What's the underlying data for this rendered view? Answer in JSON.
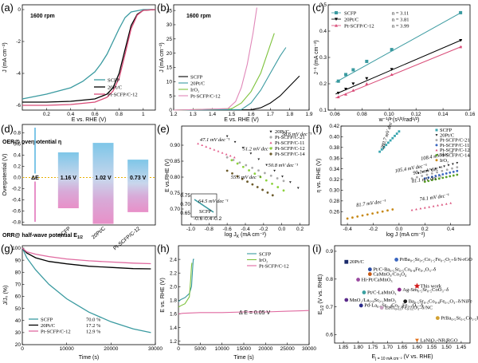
{
  "chart_data": [
    {
      "id": "a",
      "type": "line",
      "panel_label": "(a)",
      "annotation": "1600 rpm",
      "xlabel": "E vs. RHE (V)",
      "ylabel": "J (mA cm⁻²)",
      "xlim": [
        0.0,
        1.1
      ],
      "ylim": [
        -6.3,
        0.3
      ],
      "xticks": [
        0.2,
        0.4,
        0.6,
        0.8,
        1.0
      ],
      "yticks": [
        -6,
        -4,
        -2,
        0
      ],
      "legend": "center-right",
      "series": [
        {
          "name": "SCFP",
          "color": "#3a9aa0",
          "x": [
            0.0,
            0.2,
            0.4,
            0.5,
            0.6,
            0.65,
            0.7,
            0.75,
            0.8,
            0.85,
            0.9,
            1.0,
            1.1
          ],
          "y": [
            -5.6,
            -5.3,
            -4.9,
            -4.5,
            -3.9,
            -3.4,
            -2.8,
            -2.0,
            -1.2,
            -0.5,
            -0.15,
            0.0,
            0.0
          ]
        },
        {
          "name": "20Pt/C",
          "color": "#000000",
          "x": [
            0.0,
            0.2,
            0.4,
            0.6,
            0.7,
            0.75,
            0.8,
            0.85,
            0.9,
            0.95,
            1.0,
            1.1
          ],
          "y": [
            -5.8,
            -5.8,
            -5.75,
            -5.6,
            -5.3,
            -4.9,
            -4.0,
            -2.5,
            -1.0,
            -0.3,
            -0.05,
            0.0
          ]
        },
        {
          "name": "Pt-SCFP/C-12",
          "color": "#d94c78",
          "x": [
            0.0,
            0.2,
            0.4,
            0.6,
            0.7,
            0.75,
            0.8,
            0.85,
            0.9,
            0.95,
            1.0,
            1.1
          ],
          "y": [
            -6.0,
            -6.0,
            -5.95,
            -5.8,
            -5.5,
            -5.1,
            -4.3,
            -2.8,
            -1.2,
            -0.35,
            -0.05,
            0.0
          ]
        }
      ]
    },
    {
      "id": "b",
      "type": "line",
      "panel_label": "(b)",
      "annotation": "1600 rpm",
      "xlabel": "E vs. RHE (V)",
      "ylabel": "J (mA cm⁻²)",
      "xlim": [
        1.2,
        1.9
      ],
      "ylim": [
        0,
        37
      ],
      "xticks": [
        1.2,
        1.3,
        1.4,
        1.5,
        1.6,
        1.7,
        1.8,
        1.9
      ],
      "yticks": [
        0,
        5,
        10,
        15,
        20,
        25,
        30,
        35
      ],
      "legend": "bottom-left",
      "series": [
        {
          "name": "SCFP",
          "color": "#000000",
          "x": [
            1.2,
            1.6,
            1.65,
            1.7,
            1.75,
            1.8,
            1.85
          ],
          "y": [
            0,
            0.1,
            0.8,
            2.5,
            5.0,
            8.5,
            12.0
          ]
        },
        {
          "name": "20Pt/C",
          "color": "#3a9aa0",
          "x": [
            1.2,
            1.55,
            1.6,
            1.65,
            1.7,
            1.75,
            1.78
          ],
          "y": [
            0,
            0.2,
            2.5,
            7.0,
            13.0,
            19.0,
            22.0
          ]
        },
        {
          "name": "IrO₂",
          "color": "#7ec23c",
          "x": [
            1.2,
            1.5,
            1.55,
            1.6,
            1.65,
            1.7,
            1.72
          ],
          "y": [
            0,
            0.5,
            2.5,
            6.5,
            13.0,
            23.0,
            27.0
          ]
        },
        {
          "name": "Pt-SCFP/C-12",
          "color": "#e087b8",
          "x": [
            1.2,
            1.48,
            1.52,
            1.55,
            1.58,
            1.61,
            1.63
          ],
          "y": [
            0,
            0.5,
            3.0,
            8.0,
            16.0,
            27.0,
            36.0
          ]
        }
      ]
    },
    {
      "id": "c",
      "type": "scatter",
      "panel_label": "(c)",
      "xlabel": "w⁻¹/² (s¹/²/rad¹/²)",
      "ylabel": "J⁻¹ (mA cm⁻²)",
      "xlim": [
        0.055,
        0.16
      ],
      "ylim": [
        0.1,
        0.5
      ],
      "xticks": [
        0.06,
        0.08,
        0.1,
        0.12,
        0.14,
        0.16
      ],
      "yticks": [
        0.1,
        0.2,
        0.3,
        0.4,
        0.5
      ],
      "legend": "top",
      "series": [
        {
          "name": "SCFP",
          "n": "n = 3.11",
          "marker": "square",
          "color": "#3a9aa0",
          "x": [
            0.0625,
            0.068,
            0.0735,
            0.0835,
            0.102,
            0.153
          ],
          "y": [
            0.21,
            0.235,
            0.253,
            0.285,
            0.33,
            0.47
          ]
        },
        {
          "name": "20Pt/C",
          "n": "n = 3.81",
          "marker": "triangle-down",
          "color": "#000000",
          "x": [
            0.0625,
            0.068,
            0.0735,
            0.0835,
            0.102,
            0.153
          ],
          "y": [
            0.165,
            0.18,
            0.2,
            0.22,
            0.255,
            0.365
          ]
        },
        {
          "name": "Pt-SCFP/C-12",
          "n": "n = 3.99",
          "marker": "triangle-up",
          "color": "#d94c78",
          "x": [
            0.0625,
            0.068,
            0.0735,
            0.0835,
            0.102,
            0.153
          ],
          "y": [
            0.15,
            0.16,
            0.175,
            0.2,
            0.235,
            0.34
          ]
        }
      ]
    },
    {
      "id": "d",
      "type": "bar",
      "panel_label": "(d)",
      "ylabel": "Overpotential (V)",
      "top_label": "OER@ overpotential η",
      "bottom_label": "ORR@ half-wave potential E",
      "bottom_label_sub": "1/2",
      "ylim": [
        -0.85,
        0.95
      ],
      "yticks": [
        0.8,
        0.6,
        0.4,
        0.2,
        0.0,
        -0.2,
        -0.4,
        -0.6,
        -0.8
      ],
      "categories": [
        "SCFP",
        "20Pt/C",
        "Pt-SCFP/C-12"
      ],
      "oer": [
        0.45,
        0.62,
        0.32
      ],
      "orr": [
        -0.55,
        -0.83,
        -0.62
      ],
      "delta_label": "ΔE",
      "delta_values": [
        "1.16 V",
        "1.02 V",
        "0.73 V"
      ],
      "delta_value_colors": [
        "#1b4f8f",
        "#1b4f8f",
        "#1b4f8f"
      ]
    },
    {
      "id": "e",
      "type": "scatter",
      "panel_label": "(e)",
      "xlabel": "log J (mA cm⁻²)",
      "xlabel_sub": "K",
      "ylabel": "E vs.RHE (V)",
      "xlim": [
        -1.1,
        0.3
      ],
      "ylim": [
        0.65,
        0.96
      ],
      "xticks": [
        -1.0,
        -0.8,
        -0.6,
        -0.4,
        -0.2,
        0.0,
        0.2
      ],
      "yticks": [
        0.7,
        0.75,
        0.8,
        0.85,
        0.9
      ],
      "legend": "top-right",
      "series": [
        {
          "name": "20Pt/C",
          "color": "#222222",
          "marker": "triangle-down",
          "slope": "58.6 mV dec⁻¹",
          "x": [
            -0.6,
            0.18
          ],
          "y": [
            0.928,
            0.766
          ]
        },
        {
          "name": "Pt-SCFP/C-21",
          "color": "#aaaaaa",
          "marker": "circle",
          "slope": "51.2 mV dec⁻¹",
          "x": [
            -0.6,
            0.02
          ],
          "y": [
            0.862,
            0.788
          ]
        },
        {
          "name": "Pt-SCFP/C-11",
          "color": "#e35a8a",
          "marker": "triangle-up",
          "slope": "47.1 mV dec⁻¹",
          "x": [
            -0.92,
            -0.52
          ],
          "y": [
            0.905,
            0.862
          ]
        },
        {
          "name": "Pt-SCFP/C-12",
          "color": "#8cd23c",
          "marker": "circle",
          "slope": "50.8 mV dec⁻¹",
          "x": [
            -0.55,
            0.02
          ],
          "y": [
            0.853,
            0.758
          ]
        },
        {
          "name": "Pt-SCFP/C-14",
          "color": "#6b5a2a",
          "marker": "circle",
          "slope": "55.6 mV dec⁻¹",
          "x": [
            -0.6,
            -0.1
          ],
          "y": [
            0.82,
            0.743
          ]
        }
      ],
      "inset": {
        "label": "SCFP",
        "slope": "64.5 mV dec⁻¹",
        "xticks": [
          -0.6,
          -0.4,
          -0.2
        ],
        "yticks": [
          0.75,
          0.7,
          0.65
        ]
      }
    },
    {
      "id": "f",
      "type": "scatter",
      "panel_label": "(f)",
      "xlabel": "log J (mA cm⁻²)",
      "ylabel": "η vs. RHE (V)",
      "xlim": [
        -0.45,
        0.55
      ],
      "ylim": [
        0.235,
        0.42
      ],
      "xticks": [
        -0.4,
        -0.2,
        0.0,
        0.2,
        0.4
      ],
      "yticks": [
        0.26,
        0.28,
        0.3,
        0.32,
        0.34,
        0.36,
        0.38,
        0.4,
        0.42
      ],
      "legend": "top-right",
      "series": [
        {
          "name": "SCFP",
          "color": "#3aa6b0",
          "marker": "square",
          "slope": "280.7 mV dec⁻¹",
          "x": [
            -0.15,
            0.0
          ],
          "y": [
            0.372,
            0.41
          ]
        },
        {
          "name": "20Pt/C",
          "color": "#222222",
          "marker": "triangle-down",
          "slope": "108.4 mV dec⁻¹",
          "x": [
            0.15,
            0.45
          ],
          "y": [
            0.332,
            0.351
          ]
        },
        {
          "name": "Pt-SCFP/C-21",
          "color": "#aaaaaa",
          "marker": "circle",
          "slope": "105.4 mV dec⁻¹",
          "x": [
            0.1,
            0.45
          ],
          "y": [
            0.322,
            0.343
          ]
        },
        {
          "name": "Pt-SCFP/C-11",
          "color": "#3a66c0",
          "marker": "circle",
          "slope": "90.1 mV dec⁻¹",
          "x": [
            0.2,
            0.45
          ],
          "y": [
            0.322,
            0.336
          ]
        },
        {
          "name": "Pt-SCFP/C-12",
          "color": "#d94c78",
          "marker": "triangle-up",
          "slope": "74.1 mV dec⁻¹",
          "x": [
            0.1,
            0.4
          ],
          "y": [
            0.263,
            0.276
          ]
        },
        {
          "name": "Pt-SCFP/C-14",
          "color": "#5aa028",
          "marker": "circle",
          "slope": "81.1 mV dec⁻¹",
          "x": [
            0.2,
            0.45
          ],
          "y": [
            0.316,
            0.329
          ]
        },
        {
          "name": "IrO₂",
          "color": "#c88a1a",
          "marker": "circle",
          "slope": "81.7 mV dec⁻¹",
          "x": [
            -0.4,
            -0.05
          ],
          "y": [
            0.247,
            0.264
          ]
        }
      ]
    },
    {
      "id": "g",
      "type": "line",
      "panel_label": "(g)",
      "xlabel": "Time (s)",
      "ylabel": "J/J₀ (%)",
      "xlim": [
        0,
        30000
      ],
      "ylim": [
        20,
        102
      ],
      "xticks": [
        0,
        10000,
        20000,
        30000
      ],
      "yticks": [
        20,
        30,
        40,
        50,
        60,
        70,
        80,
        90,
        100
      ],
      "legend": "bottom-left",
      "series": [
        {
          "name": "SCFP",
          "retention": "70.0 %",
          "color": "#3a9aa0",
          "x": [
            0,
            1000,
            3000,
            6000,
            10000,
            15000,
            20000,
            25000,
            29000
          ],
          "y": [
            100,
            92,
            82,
            70,
            58,
            47,
            39,
            33,
            30
          ]
        },
        {
          "name": "20Pt/C",
          "retention": "17.2 %",
          "color": "#000000",
          "x": [
            0,
            1000,
            3000,
            6000,
            10000,
            15000,
            20000,
            25000,
            29000
          ],
          "y": [
            100,
            96,
            92,
            89,
            87,
            85,
            84,
            83,
            82.8
          ]
        },
        {
          "name": "Pt-SCFP/C-12",
          "retention": "12.9 %",
          "color": "#e06aa0",
          "x": [
            0,
            1000,
            3000,
            6000,
            10000,
            15000,
            20000,
            25000,
            29000
          ],
          "y": [
            100,
            97,
            95,
            93,
            91,
            89.5,
            88.5,
            87.6,
            87.1
          ]
        }
      ]
    },
    {
      "id": "h",
      "type": "line",
      "panel_label": "(h)",
      "xlabel": "Time (s)",
      "ylabel": "E vs. RHE (V)",
      "xlim": [
        0,
        30000
      ],
      "ylim": [
        1.15,
        2.6
      ],
      "xticks": [
        0,
        5000,
        10000,
        15000,
        20000,
        25000,
        30000
      ],
      "yticks": [
        1.2,
        1.4,
        1.6,
        1.8,
        2.0,
        2.2,
        2.4
      ],
      "legend": "top-right",
      "annotation": "Δ E = 0.05 V",
      "series": [
        {
          "name": "SCFP",
          "color": "#3a9aa0",
          "x": [
            0,
            500,
            1500,
            2500,
            3000,
            3300,
            3400,
            3600
          ],
          "y": [
            1.78,
            1.81,
            1.84,
            1.9,
            2.0,
            2.3,
            2.4,
            2.4
          ]
        },
        {
          "name": "IrO₂",
          "color": "#7ec23c",
          "x": [
            0,
            500,
            1500,
            2500,
            2800,
            3000,
            3100
          ],
          "y": [
            1.7,
            1.72,
            1.75,
            1.85,
            2.1,
            2.3,
            2.35
          ]
        },
        {
          "name": "Pt-SCFP/C-12",
          "color": "#e06aa0",
          "x": [
            0,
            1000,
            5000,
            10000,
            15000,
            20000,
            25000,
            30000
          ],
          "y": [
            1.6,
            1.61,
            1.62,
            1.62,
            1.63,
            1.63,
            1.64,
            1.65
          ]
        }
      ]
    },
    {
      "id": "i",
      "type": "scatter",
      "panel_label": "(i)",
      "xlabel": "E",
      "xlabel_sub": "j = 10 mA cm⁻²",
      "xlabel_tail": " (V vs. RHE)",
      "ylabel": "E",
      "ylabel_sub": "1/2",
      "ylabel_tail": " (V vs. RHE)",
      "xlim": [
        1.88,
        1.42
      ],
      "ylim": [
        0.57,
        0.92
      ],
      "xticks": [
        1.85,
        1.8,
        1.75,
        1.7,
        1.65,
        1.6,
        1.55,
        1.5,
        1.45
      ],
      "yticks": [
        0.6,
        0.7,
        0.8,
        0.9
      ],
      "points": [
        {
          "label": "20Pt/C",
          "x": 1.84,
          "y": 0.862,
          "color": "#1a2a6a",
          "marker": "square",
          "text_color": "#000000"
        },
        {
          "label": "PrBa₀.₅Sr₀.₅Co₁.₅Fe₀.₅O₅₊δ/N-rGO",
          "x": 1.67,
          "y": 0.87,
          "color": "#3a66c0",
          "marker": "circle",
          "text_color": "#9a8ad0"
        },
        {
          "label": "Pt/C-Ba₀.₅Sr₀.₅Co₀.₈Fe₀.₂O₃₋δ",
          "x": 1.76,
          "y": 0.835,
          "color": "#2a4aa0",
          "marker": "circle",
          "text_color": "#1a1a6a"
        },
        {
          "label": "CaMnO₃/Co₃O₄",
          "x": 1.76,
          "y": 0.818,
          "color": "#c85a14",
          "marker": "circle",
          "text_color": "#c85a14"
        },
        {
          "label": "Hi-Pt/CaMnO₃",
          "x": 1.8,
          "y": 0.798,
          "color": "#9a4aa0",
          "marker": "circle",
          "text_color": "#000000"
        },
        {
          "label": "Pt-SCFP/C-12",
          "x": 1.6,
          "y": 0.775,
          "color": "#d21a1a",
          "marker": "star",
          "text_color": "#d21a1a"
        },
        {
          "label": "Ag-Sm₀.₅Sr₀.₅CoO₃₋δ",
          "x": 1.66,
          "y": 0.762,
          "color": "#8a2a8a",
          "marker": "circle",
          "text_color": "#000000"
        },
        {
          "label": "Pt/C-LaMnO₃",
          "x": 1.78,
          "y": 0.752,
          "color": "#3aa0a0",
          "marker": "circle",
          "text_color": "#2a9a9a"
        },
        {
          "label": "MnO₂/La₀.₈Sr₀.₂MnO₃",
          "x": 1.84,
          "y": 0.725,
          "color": "#5a2a8a",
          "marker": "circle",
          "text_color": "#000000"
        },
        {
          "label": "Ba₀.₅Sr₀.₅Co₀.₈Fe₀.₂O₃₋δ/NiFe",
          "x": 1.64,
          "y": 0.72,
          "color": "#1a1a1a",
          "marker": "circle",
          "text_color": "#000000"
        },
        {
          "label": "Pd-La₀.₆Sr₀.₄Co₀.₂Fe₀.₈O₃₋δ",
          "x": 1.79,
          "y": 0.705,
          "color": "#2a2a8a",
          "marker": "circle",
          "text_color": "#8a8a8a"
        },
        {
          "label": "LaTi₀.₆₅Fe₀.₃₅O₃₋δ/NC",
          "x": 1.72,
          "y": 0.697,
          "color": "#c8a0c0",
          "marker": "circle",
          "text_color": "#c86aa0"
        },
        {
          "label": "PrBa₀.₅Sr₀.₅Co₁.₅Fe₀.₅O₅₊δ-NF",
          "x": 1.53,
          "y": 0.66,
          "color": "#d2a030",
          "marker": "circle",
          "text_color": "#d2a030"
        },
        {
          "label": "LaNiO₃-NR/RGO",
          "x": 1.6,
          "y": 0.58,
          "color": "#e2701a",
          "marker": "triangle-down",
          "text_color": "#e2701a"
        }
      ],
      "this_work_label": "This work"
    }
  ]
}
